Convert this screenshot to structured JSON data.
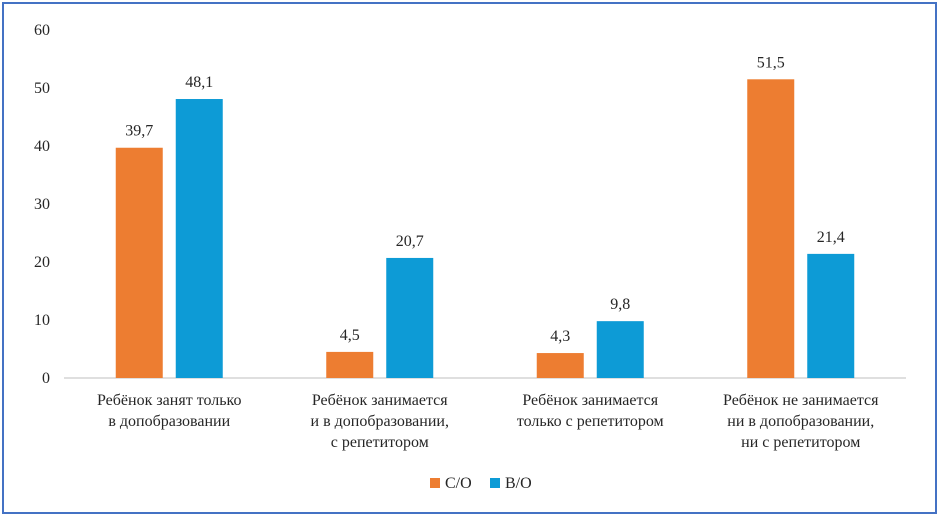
{
  "chart_data": {
    "type": "bar",
    "title": "",
    "xlabel": "",
    "ylabel": "",
    "ylim": [
      0,
      60
    ],
    "yticks": [
      0,
      10,
      20,
      30,
      40,
      50,
      60
    ],
    "grid": false,
    "legend_position": "bottom",
    "categories": [
      [
        "Ребёнок занят только",
        "в допобразовании"
      ],
      [
        "Ребёнок занимается",
        "и в допобразовании,",
        "с репетитором"
      ],
      [
        "Ребёнок занимается",
        "только с репетитором"
      ],
      [
        "Ребёнок не занимается",
        "ни в допобразовании,",
        "ни с репетитором"
      ]
    ],
    "series": [
      {
        "name": "С/О",
        "color": "#ed7d31",
        "values": [
          39.7,
          4.5,
          4.3,
          51.5
        ],
        "labels": [
          "39,7",
          "4,5",
          "4,3",
          "51,5"
        ]
      },
      {
        "name": "В/О",
        "color": "#0d9bd6",
        "values": [
          48.1,
          20.7,
          9.8,
          21.4
        ],
        "labels": [
          "48,1",
          "20,7",
          "9,8",
          "21,4"
        ]
      }
    ]
  }
}
